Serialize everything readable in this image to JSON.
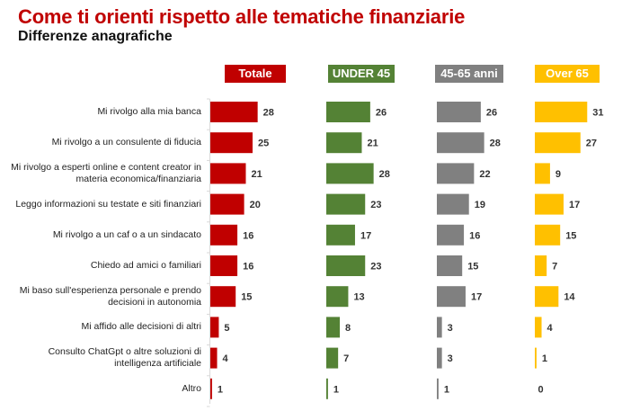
{
  "chart_data": {
    "type": "bar",
    "orientation": "horizontal",
    "title": "Come ti orienti rispetto alle tematiche finanziarie",
    "subtitle": "Differenze anagrafiche",
    "categories": [
      "Mi rivolgo alla mia banca",
      "Mi rivolgo a un consulente di fiducia",
      "Mi rivolgo a esperti online e content creator in materia economica/finanziaria",
      "Leggo informazioni su testate e siti finanziari",
      "Mi rivolgo a un caf o a un sindacato",
      "Chiedo ad amici o familiari",
      "Mi baso sull'esperienza personale e prendo decisioni in autonomia",
      "Mi affido alle decisioni di altri",
      "Consulto ChatGpt o altre soluzioni di intelligenza artificiale",
      "Altro"
    ],
    "series": [
      {
        "name": "Totale",
        "color": "#c00000",
        "values": [
          28,
          25,
          21,
          20,
          16,
          16,
          15,
          5,
          4,
          1
        ]
      },
      {
        "name": "UNDER 45",
        "color": "#548235",
        "values": [
          26,
          21,
          28,
          23,
          17,
          23,
          13,
          8,
          7,
          1
        ]
      },
      {
        "name": "45-65 anni",
        "color": "#808080",
        "values": [
          26,
          28,
          22,
          19,
          16,
          15,
          17,
          3,
          3,
          1
        ]
      },
      {
        "name": "Over 65",
        "color": "#ffc000",
        "values": [
          31,
          27,
          9,
          17,
          15,
          7,
          14,
          4,
          1,
          0
        ]
      }
    ],
    "legend": "top",
    "grid": false,
    "xlabel": "",
    "ylabel": ""
  }
}
